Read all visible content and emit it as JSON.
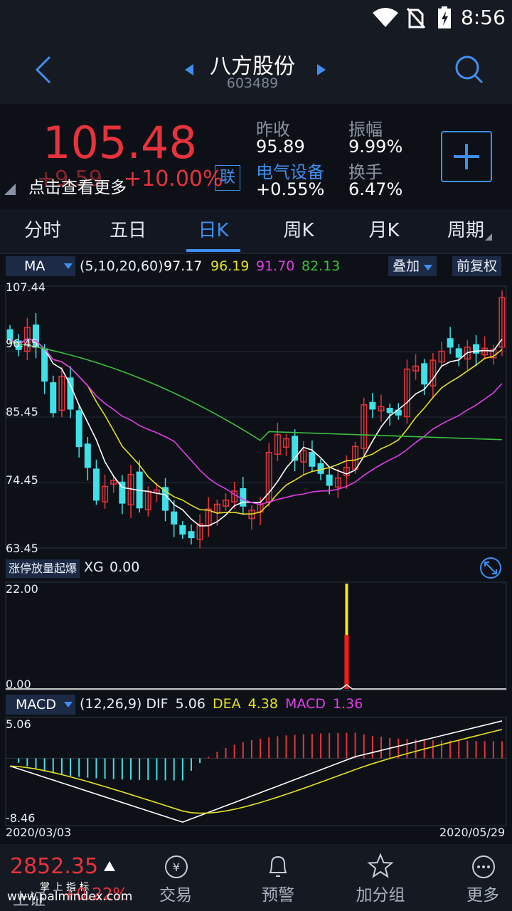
{
  "status": {
    "time": "8:56"
  },
  "nav": {
    "title": "八方股份",
    "code": "603489"
  },
  "quote": {
    "price": "105.48",
    "change": "+9.59",
    "change_pct": "+10.00%",
    "lian": "联",
    "hint": "点击查看更多",
    "prev_close_label": "昨收",
    "prev_close": "95.89",
    "amplitude_label": "振幅",
    "amplitude": "9.99%",
    "sector": "电气设备",
    "sector_change": "+0.55%",
    "turnover_label": "换手",
    "turnover": "6.47%",
    "colors": {
      "up": "#e8323c",
      "down": "#3fe0e8",
      "accent": "#3f8ff0"
    }
  },
  "tabs": [
    "分时",
    "五日",
    "日K",
    "周K",
    "月K",
    "周期"
  ],
  "ma": {
    "name": "MA",
    "params": "(5,10,20,60)",
    "v5": "97.17",
    "v10": "96.19",
    "v20": "91.70",
    "v60": "82.13",
    "overlay": "叠加",
    "adjust": "前复权",
    "axis": [
      "107.44",
      "96.45",
      "85.45",
      "74.45",
      "63.45"
    ]
  },
  "xg": {
    "name": "涨停放量起爆",
    "label": "XG",
    "value": "0.00",
    "axis_top": "22.00",
    "axis_bottom": "0.00"
  },
  "macd": {
    "name": "MACD",
    "params": "(12,26,9)",
    "dif_label": "DIF",
    "dif": "5.06",
    "dea_label": "DEA",
    "dea": "4.38",
    "macd_label": "MACD",
    "macd": "1.36",
    "axis_top": "5.06",
    "axis_bottom": "-8.46",
    "date_start": "2020/03/03",
    "date_end": "2020/05/29"
  },
  "bottom": {
    "index_value": "2852.35",
    "index_name": "上证",
    "index_change": "+0.22%",
    "items": [
      "交易",
      "预警",
      "加分组",
      "更多"
    ],
    "watermark_top": "掌 上 指 标",
    "watermark": "www.palmindex.com"
  },
  "chart_data": {
    "type": "candlestick",
    "x_start": "2020/03/03",
    "x_end": "2020/05/29",
    "ylim": [
      63.45,
      107.44
    ],
    "closes": [
      98.5,
      96.8,
      100.5,
      97.2,
      91.5,
      86.2,
      92.3,
      86.8,
      80.5,
      77.0,
      71.5,
      73.8,
      74.8,
      71.0,
      75.8,
      70.2,
      73.0,
      73.2,
      69.8,
      67.5,
      65.8,
      65.2,
      67.5,
      70.0,
      70.8,
      71.5,
      73.0,
      70.5,
      69.8,
      70.8,
      79.5,
      82.5,
      81.8,
      78.2,
      79.8,
      77.2,
      76.0,
      74.0,
      75.2,
      77.0,
      80.5,
      87.5,
      86.8,
      87.2,
      86.2,
      85.8,
      93.5,
      94.0,
      91.0,
      95.0,
      96.5,
      97.2,
      95.5,
      97.2,
      96.2,
      97.0,
      96.8,
      105.5
    ]
  }
}
